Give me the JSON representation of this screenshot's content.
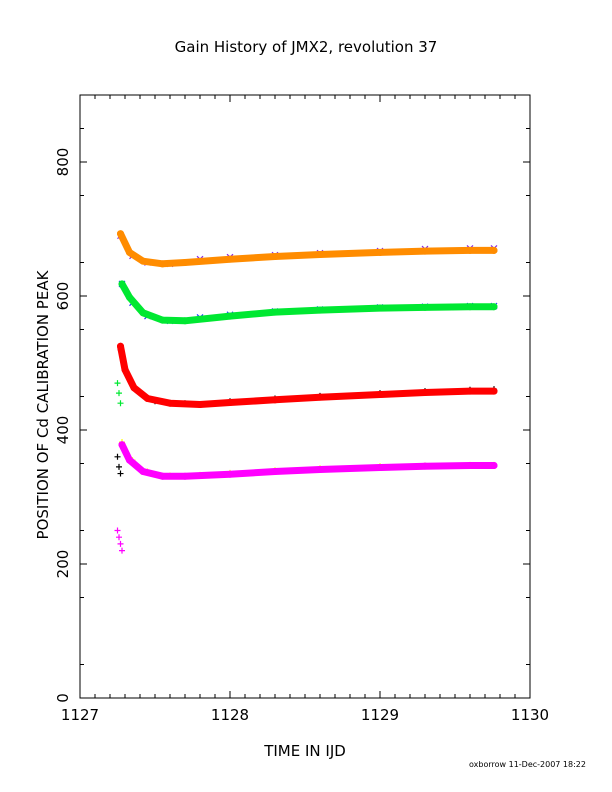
{
  "chart_data": {
    "type": "scatter",
    "title": "Gain History of JMX2, revolution 37",
    "xlabel": "TIME IN IJD",
    "ylabel": "POSITION OF Cd CALIBRATION PEAK",
    "xlim": [
      1127,
      1130
    ],
    "ylim": [
      0,
      900
    ],
    "x_ticks": [
      1127,
      1128,
      1129,
      1130
    ],
    "y_ticks": [
      0,
      200,
      400,
      600,
      800
    ],
    "grid": false,
    "credit": "oxborrow 11-Dec-2007 18:22",
    "series": [
      {
        "marker": "x",
        "color": "#8a2be2",
        "points": [
          [
            1127.27,
            690
          ],
          [
            1127.35,
            660
          ],
          [
            1127.45,
            650
          ],
          [
            1127.6,
            648
          ],
          [
            1127.8,
            655
          ],
          [
            1128.0,
            658
          ],
          [
            1128.3,
            661
          ],
          [
            1128.6,
            664
          ],
          [
            1129.0,
            667
          ],
          [
            1129.3,
            670
          ],
          [
            1129.6,
            671
          ],
          [
            1129.76,
            671
          ]
        ]
      },
      {
        "marker": "fit",
        "color": "#ff8c00",
        "points": [
          [
            1127.27,
            693
          ],
          [
            1127.33,
            665
          ],
          [
            1127.42,
            652
          ],
          [
            1127.55,
            648
          ],
          [
            1127.7,
            650
          ],
          [
            1128.0,
            655
          ],
          [
            1128.3,
            659
          ],
          [
            1128.6,
            662
          ],
          [
            1129.0,
            665
          ],
          [
            1129.3,
            667
          ],
          [
            1129.6,
            668
          ],
          [
            1129.76,
            668
          ]
        ]
      },
      {
        "marker": "x",
        "color": "#1e3cff",
        "points": [
          [
            1127.28,
            618
          ],
          [
            1127.35,
            590
          ],
          [
            1127.45,
            570
          ],
          [
            1127.6,
            563
          ],
          [
            1127.8,
            568
          ],
          [
            1128.0,
            572
          ],
          [
            1128.3,
            577
          ],
          [
            1128.6,
            580
          ],
          [
            1129.0,
            583
          ],
          [
            1129.3,
            584
          ],
          [
            1129.6,
            585
          ],
          [
            1129.76,
            585
          ]
        ]
      },
      {
        "marker": "fit",
        "color": "#00e832",
        "points": [
          [
            1127.28,
            618
          ],
          [
            1127.33,
            598
          ],
          [
            1127.42,
            575
          ],
          [
            1127.55,
            564
          ],
          [
            1127.7,
            563
          ],
          [
            1128.0,
            570
          ],
          [
            1128.3,
            576
          ],
          [
            1128.6,
            579
          ],
          [
            1129.0,
            582
          ],
          [
            1129.3,
            583
          ],
          [
            1129.6,
            584
          ],
          [
            1129.76,
            584
          ]
        ]
      },
      {
        "marker": "+",
        "color": "#000000",
        "points": [
          [
            1127.27,
            520
          ],
          [
            1127.32,
            480
          ],
          [
            1127.4,
            455
          ],
          [
            1127.5,
            443
          ],
          [
            1127.7,
            440
          ],
          [
            1128.0,
            443
          ],
          [
            1128.3,
            447
          ],
          [
            1128.6,
            451
          ],
          [
            1129.0,
            455
          ],
          [
            1129.3,
            458
          ],
          [
            1129.6,
            460
          ],
          [
            1129.76,
            461
          ]
        ]
      },
      {
        "marker": "fit",
        "color": "#ff0000",
        "points": [
          [
            1127.27,
            525
          ],
          [
            1127.3,
            490
          ],
          [
            1127.36,
            463
          ],
          [
            1127.45,
            447
          ],
          [
            1127.6,
            440
          ],
          [
            1127.8,
            438
          ],
          [
            1128.0,
            441
          ],
          [
            1128.3,
            445
          ],
          [
            1128.6,
            449
          ],
          [
            1129.0,
            453
          ],
          [
            1129.3,
            456
          ],
          [
            1129.6,
            458
          ],
          [
            1129.76,
            458
          ]
        ]
      },
      {
        "marker": "+",
        "color": "#ffff00",
        "points": [
          [
            1127.28,
            382
          ],
          [
            1127.35,
            355
          ],
          [
            1127.45,
            338
          ],
          [
            1127.6,
            332
          ],
          [
            1127.8,
            333
          ],
          [
            1128.0,
            336
          ],
          [
            1128.3,
            340
          ],
          [
            1128.6,
            343
          ],
          [
            1129.0,
            346
          ],
          [
            1129.3,
            347
          ],
          [
            1129.6,
            348
          ],
          [
            1129.76,
            348
          ]
        ]
      },
      {
        "marker": "fit",
        "color": "#ff00ff",
        "points": [
          [
            1127.28,
            378
          ],
          [
            1127.33,
            355
          ],
          [
            1127.42,
            338
          ],
          [
            1127.55,
            331
          ],
          [
            1127.7,
            331
          ],
          [
            1128.0,
            334
          ],
          [
            1128.3,
            338
          ],
          [
            1128.6,
            341
          ],
          [
            1129.0,
            344
          ],
          [
            1129.3,
            346
          ],
          [
            1129.6,
            347
          ],
          [
            1129.76,
            347
          ]
        ]
      },
      {
        "marker": "+",
        "color": "#ff00ff",
        "points": [
          [
            1127.25,
            250
          ],
          [
            1127.26,
            240
          ],
          [
            1127.27,
            230
          ],
          [
            1127.28,
            220
          ]
        ]
      },
      {
        "marker": "+",
        "color": "#00e832",
        "points": [
          [
            1127.25,
            470
          ],
          [
            1127.26,
            455
          ],
          [
            1127.27,
            440
          ]
        ]
      },
      {
        "marker": "+",
        "color": "#000000",
        "points": [
          [
            1127.25,
            360
          ],
          [
            1127.26,
            345
          ],
          [
            1127.27,
            335
          ]
        ]
      }
    ]
  }
}
